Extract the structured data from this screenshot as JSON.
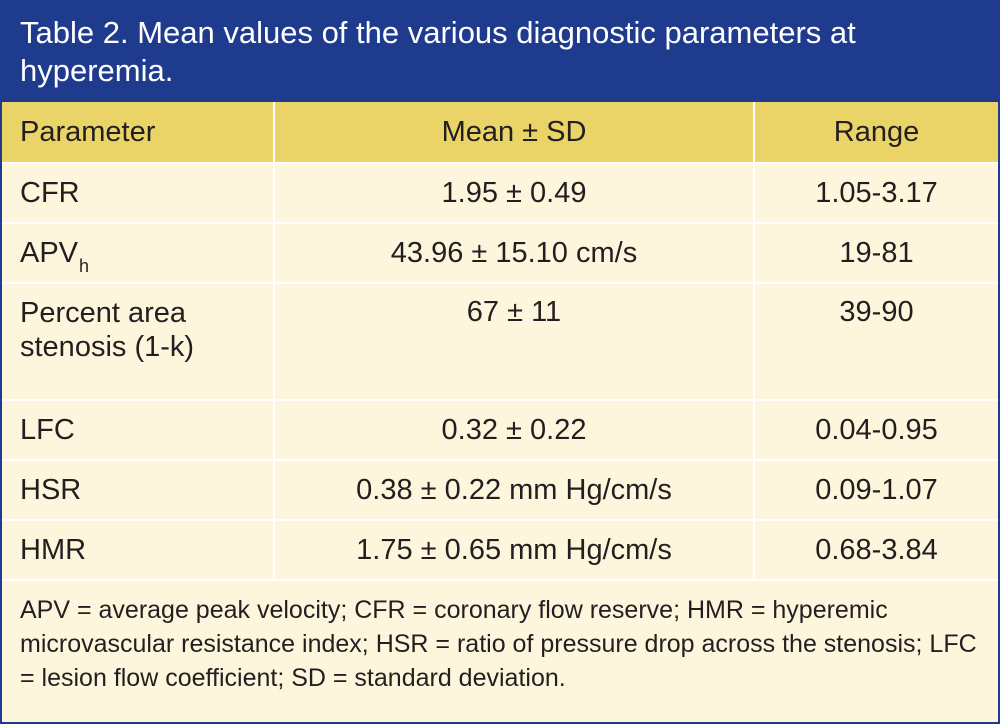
{
  "title": "Table 2. Mean values of the various diagnostic parameters at hyperemia.",
  "columns": [
    "Parameter",
    "Mean ± SD",
    "Range"
  ],
  "rows": [
    {
      "parameter": "CFR",
      "mean_sd": "1.95 ± 0.49",
      "range": "1.05-3.17"
    },
    {
      "parameter": "APV",
      "parameter_subscript": "h",
      "mean_sd": "43.96 ± 15.10 cm/s",
      "range": "19-81"
    },
    {
      "parameter": "Percent area stenosis (1-k)",
      "mean_sd": "67 ± 11",
      "range": "39-90"
    },
    {
      "parameter": "LFC",
      "mean_sd": "0.32 ± 0.22",
      "range": "0.04-0.95"
    },
    {
      "parameter": "HSR",
      "mean_sd": "0.38 ± 0.22 mm Hg/cm/s",
      "range": "0.09-1.07"
    },
    {
      "parameter": "HMR",
      "mean_sd": "1.75 ± 0.65 mm Hg/cm/s",
      "range": "0.68-3.84"
    }
  ],
  "footnote": "APV = average peak velocity; CFR = coronary flow reserve; HMR = hyperemic microvascular resistance index; HSR = ratio of pressure drop across the stenosis; LFC = lesion flow coefficient; SD = standard deviation.",
  "colors": {
    "title_bg": "#1f3b8e",
    "header_bg": "#ead467",
    "body_bg": "#fdf6dc",
    "text": "#231f20"
  }
}
